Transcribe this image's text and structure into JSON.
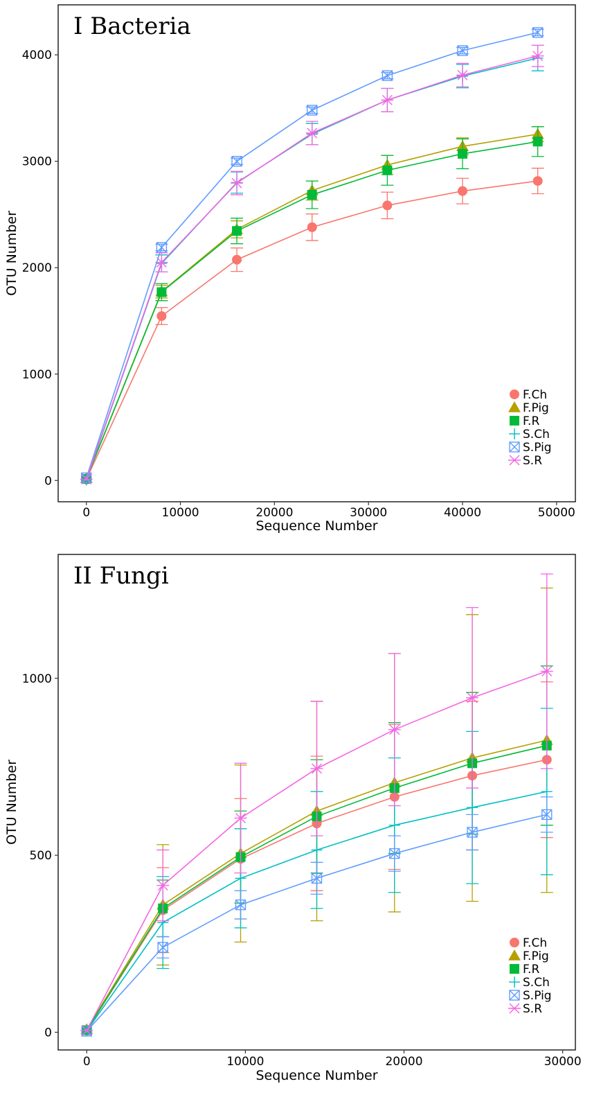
{
  "figure": {
    "description_free": true
  },
  "chart_data": [
    {
      "type": "line",
      "title": "I  Bacteria",
      "xlabel": "Sequence Number",
      "ylabel": "OTU Number",
      "xlim": [
        -3000,
        52000
      ],
      "ylim": [
        -200,
        4470
      ],
      "xticks": [
        0,
        10000,
        20000,
        30000,
        40000,
        50000
      ],
      "yticks": [
        0,
        1000,
        2000,
        3000,
        4000
      ],
      "x": [
        0,
        8000,
        16000,
        24000,
        32000,
        40000,
        48000
      ],
      "legend_position": "bottom-right",
      "grid": false,
      "series": [
        {
          "name": "F.Ch",
          "color": "#F8766D",
          "marker": "circle",
          "values": [
            10,
            1545,
            2075,
            2380,
            2585,
            2720,
            2815
          ],
          "errors": [
            0,
            80,
            110,
            125,
            125,
            120,
            120
          ]
        },
        {
          "name": "F.Pig",
          "color": "#B79F00",
          "marker": "triangle",
          "values": [
            20,
            1775,
            2360,
            2725,
            2965,
            3140,
            3255
          ],
          "errors": [
            0,
            60,
            80,
            90,
            90,
            80,
            70
          ]
        },
        {
          "name": "F.R",
          "color": "#00BA38",
          "marker": "square",
          "values": [
            15,
            1770,
            2345,
            2685,
            2915,
            3070,
            3185
          ],
          "errors": [
            0,
            80,
            120,
            130,
            140,
            140,
            140
          ]
        },
        {
          "name": "S.Ch",
          "color": "#00BFC4",
          "marker": "plus",
          "values": [
            5,
            2040,
            2800,
            3255,
            3575,
            3800,
            3970
          ],
          "errors": [
            0,
            80,
            100,
            100,
            110,
            110,
            120
          ]
        },
        {
          "name": "S.Pig",
          "color": "#619CFF",
          "marker": "square-x",
          "values": [
            25,
            2190,
            3000,
            3480,
            3805,
            4040,
            4210
          ],
          "errors": [
            0,
            30,
            30,
            30,
            30,
            30,
            30
          ]
        },
        {
          "name": "S.R",
          "color": "#F564E3",
          "marker": "asterisk",
          "values": [
            12,
            2050,
            2795,
            3265,
            3575,
            3810,
            3990
          ],
          "errors": [
            0,
            90,
            110,
            110,
            110,
            110,
            100
          ]
        }
      ]
    },
    {
      "type": "line",
      "title": "II  Fungi",
      "xlabel": "Sequence Number",
      "ylabel": "OTU Number",
      "xlim": [
        -1800,
        30800
      ],
      "ylim": [
        -50,
        1350
      ],
      "xticks": [
        0,
        10000,
        20000,
        30000
      ],
      "yticks": [
        0,
        500,
        1000
      ],
      "x": [
        0,
        4800,
        9700,
        14500,
        19400,
        24300,
        29000
      ],
      "legend_position": "bottom-right",
      "grid": false,
      "series": [
        {
          "name": "F.Ch",
          "color": "#F8766D",
          "marker": "circle",
          "values": [
            5,
            345,
            490,
            590,
            665,
            725,
            770
          ],
          "errors": [
            0,
            120,
            170,
            190,
            205,
            210,
            220
          ]
        },
        {
          "name": "F.Pig",
          "color": "#B79F00",
          "marker": "triangle",
          "values": [
            8,
            360,
            505,
            625,
            705,
            775,
            825
          ],
          "errors": [
            0,
            170,
            250,
            310,
            365,
            405,
            430
          ]
        },
        {
          "name": "F.R",
          "color": "#00BA38",
          "marker": "square",
          "values": [
            6,
            350,
            495,
            610,
            690,
            760,
            810
          ],
          "errors": [
            0,
            80,
            130,
            160,
            185,
            200,
            225
          ]
        },
        {
          "name": "S.Ch",
          "color": "#00BFC4",
          "marker": "plus",
          "values": [
            4,
            310,
            435,
            515,
            585,
            635,
            680
          ],
          "errors": [
            0,
            130,
            140,
            165,
            190,
            215,
            235
          ]
        },
        {
          "name": "S.Pig",
          "color": "#619CFF",
          "marker": "square-x",
          "values": [
            3,
            240,
            360,
            435,
            505,
            565,
            615
          ],
          "errors": [
            0,
            30,
            40,
            45,
            50,
            50,
            50
          ]
        },
        {
          "name": "S.R",
          "color": "#F564E3",
          "marker": "asterisk",
          "values": [
            5,
            415,
            605,
            745,
            855,
            945,
            1020
          ],
          "errors": [
            0,
            100,
            155,
            190,
            215,
            255,
            275
          ]
        }
      ]
    }
  ]
}
